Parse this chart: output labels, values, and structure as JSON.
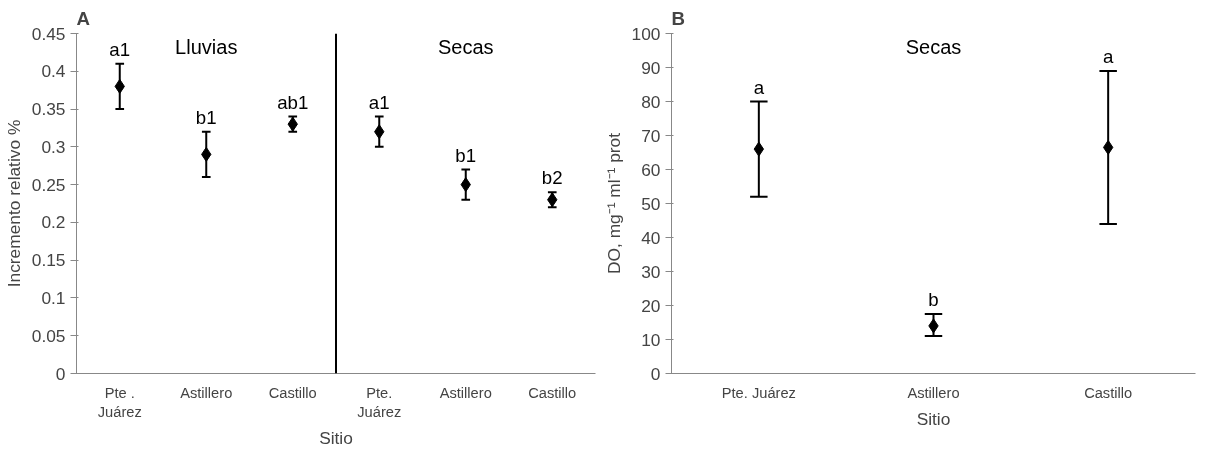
{
  "chart_data": [
    {
      "type": "scatter",
      "title": "A",
      "xlabel": "Sitio",
      "ylabel": "Incremento relativo %",
      "categories": [
        "Pte .\nJuárez",
        "Astillero",
        "Castillo",
        "Pte.\nJuárez",
        "Astillero",
        "Castillo"
      ],
      "series": [
        {
          "color": "#000000",
          "values": [
            0.38,
            0.29,
            0.33,
            0.32,
            0.25,
            0.23
          ],
          "errors": [
            0.03,
            0.03,
            0.01,
            0.02,
            0.02,
            0.01
          ]
        }
      ],
      "ylim": [
        0,
        0.45
      ],
      "yticks": [
        0,
        0.05,
        0.1,
        0.15,
        0.2,
        0.25,
        0.3,
        0.35,
        0.4,
        0.45
      ],
      "grid": false,
      "marker": "diamond",
      "annotations": [
        "a1",
        "b1",
        "ab1",
        "a1",
        "b1",
        "b2",
        "Lluvias",
        "Secas"
      ]
    },
    {
      "type": "scatter",
      "title": "B",
      "xlabel": "Sitio",
      "ylabel": "DO, mg⁻¹ ml⁻¹ prot",
      "categories": [
        "Pte. Juárez",
        "Astillero",
        "Castillo"
      ],
      "series": [
        {
          "color": "#000000",
          "values": [
            66,
            14,
            66.5
          ],
          "errors": [
            [
              52,
              80
            ],
            [
              11,
              17.5
            ],
            [
              44,
              89
            ]
          ]
        }
      ],
      "ylim": [
        0,
        100
      ],
      "yticks": [
        0,
        10,
        20,
        30,
        40,
        50,
        60,
        70,
        80,
        90,
        100
      ],
      "grid": false,
      "marker": "diamond",
      "annotations": [
        "a",
        "b",
        "a",
        "Secas"
      ]
    }
  ]
}
